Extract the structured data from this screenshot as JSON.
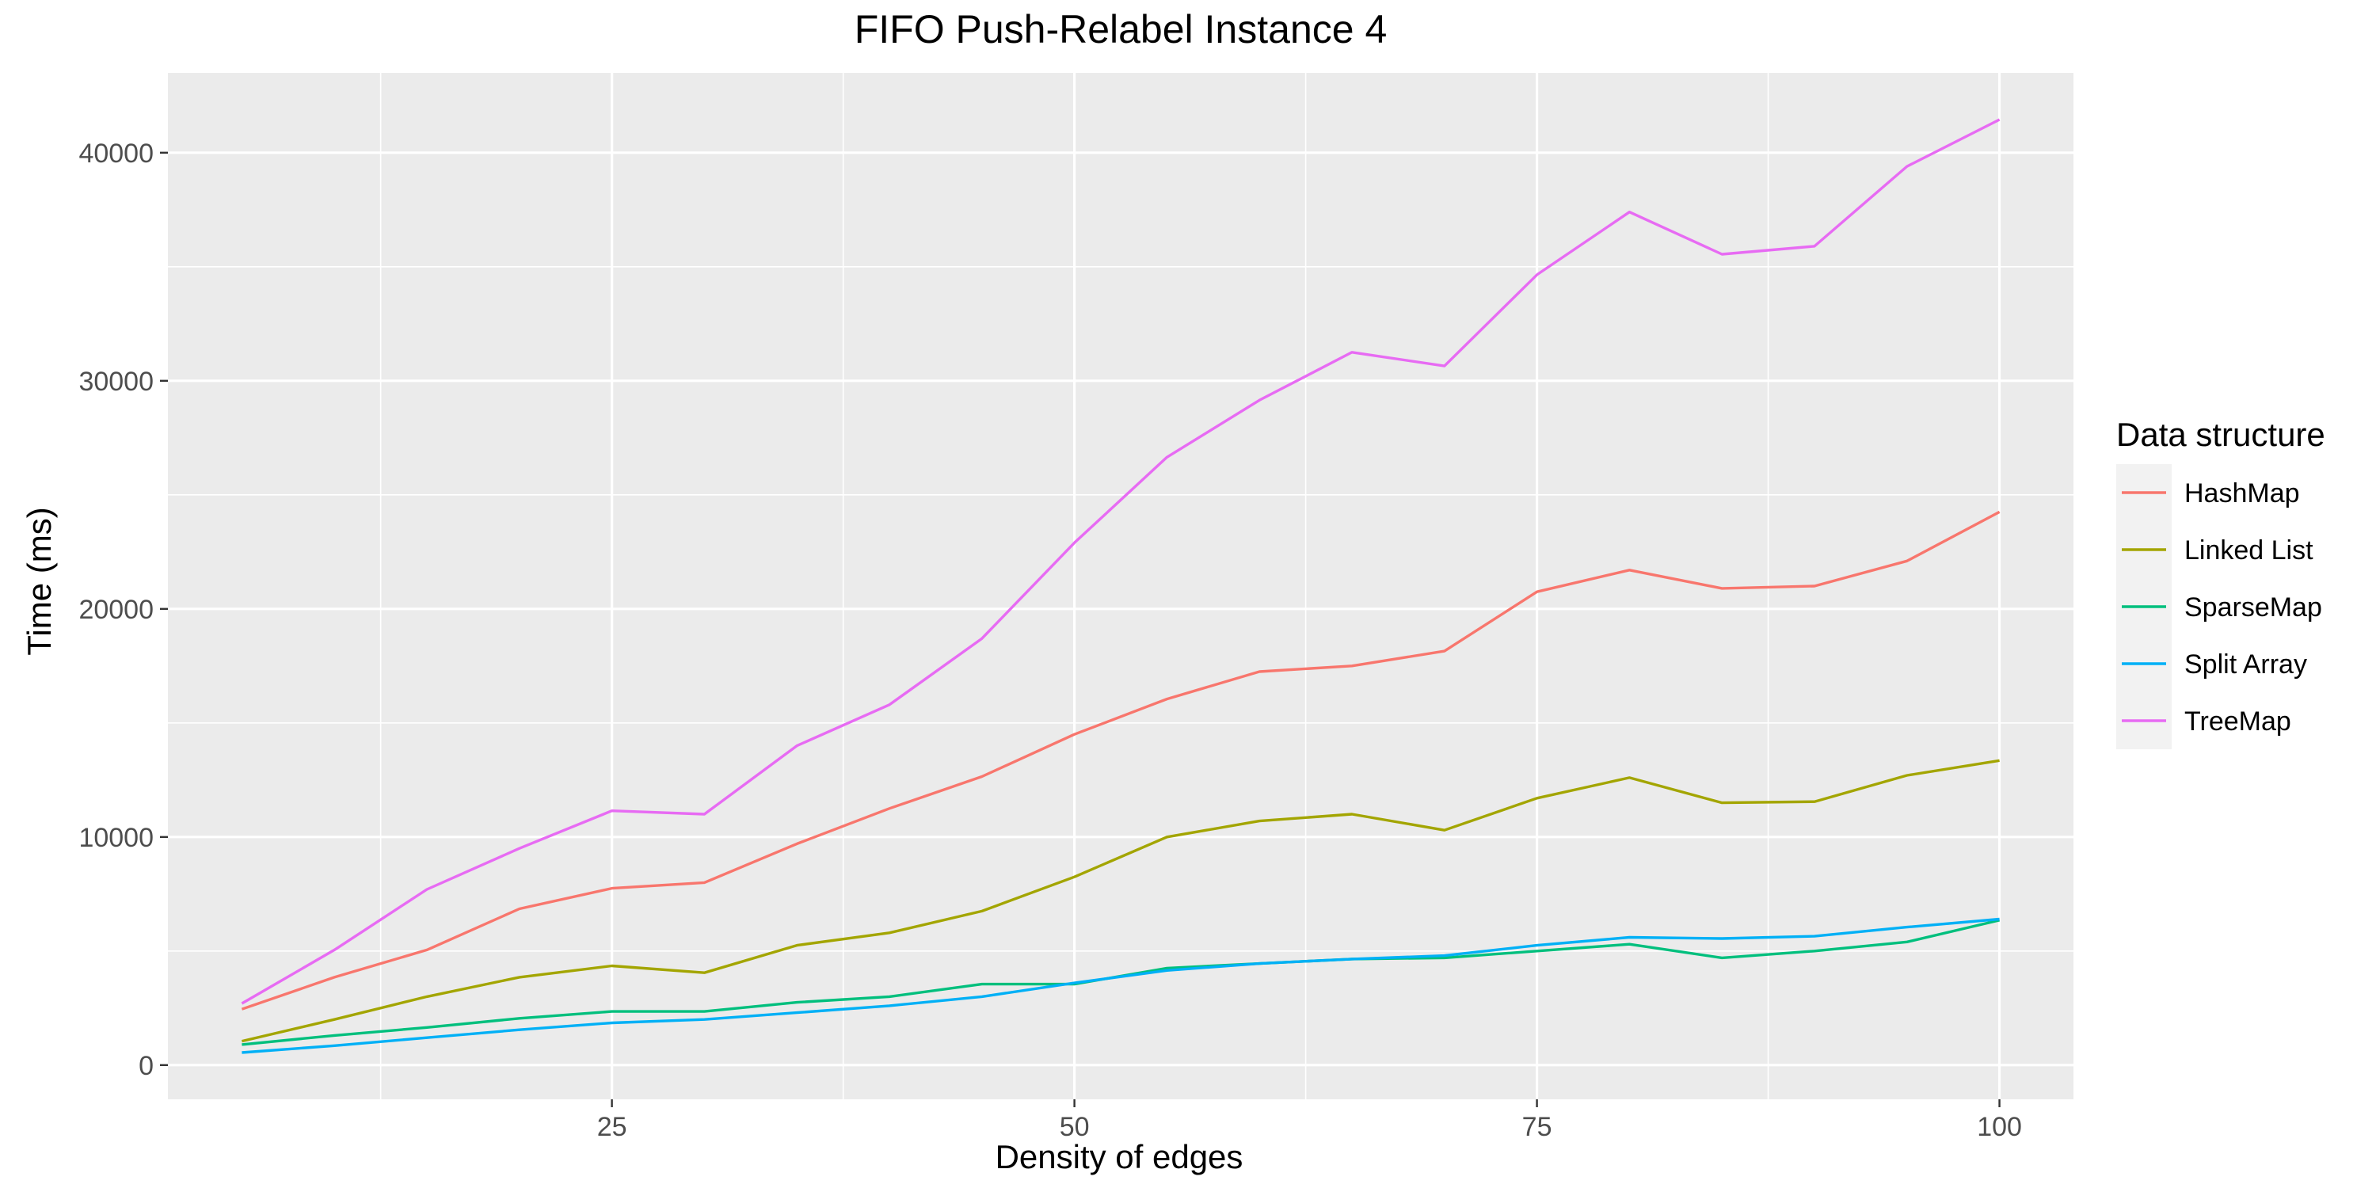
{
  "chart_data": {
    "type": "line",
    "title": "FIFO Push-Relabel Instance 4",
    "xlabel": "Density of edges",
    "ylabel": "Time (ms)",
    "xlim": [
      1,
      104
    ],
    "ylim": [
      -1500,
      43500
    ],
    "x_ticks": [
      25,
      50,
      75,
      100
    ],
    "y_ticks": [
      0,
      10000,
      20000,
      30000,
      40000
    ],
    "grid": true,
    "legend_title": "Data structure",
    "legend_position": "right",
    "x": [
      5,
      10,
      15,
      20,
      25,
      30,
      35,
      40,
      45,
      50,
      55,
      60,
      65,
      70,
      75,
      80,
      85,
      90,
      95,
      100
    ],
    "series": [
      {
        "name": "HashMap",
        "color": "#F8766D",
        "values": [
          2450,
          3850,
          5050,
          6850,
          7750,
          8000,
          9700,
          11250,
          12650,
          14500,
          16050,
          17250,
          17500,
          18150,
          20750,
          21700,
          20900,
          21000,
          22100,
          24250
        ]
      },
      {
        "name": "Linked List",
        "color": "#A3A500",
        "values": [
          1050,
          2000,
          3000,
          3850,
          4350,
          4050,
          5250,
          5800,
          6750,
          8250,
          10000,
          10700,
          11000,
          10300,
          11700,
          12600,
          11500,
          11550,
          12700,
          13350
        ]
      },
      {
        "name": "SparseMap",
        "color": "#00BF7D",
        "values": [
          900,
          1300,
          1650,
          2050,
          2350,
          2350,
          2750,
          3000,
          3550,
          3550,
          4250,
          4450,
          4650,
          4700,
          5000,
          5300,
          4700,
          5000,
          5400,
          6350
        ]
      },
      {
        "name": "Split Array",
        "color": "#00B0F6",
        "values": [
          550,
          850,
          1200,
          1550,
          1850,
          2000,
          2300,
          2600,
          3000,
          3600,
          4150,
          4450,
          4650,
          4800,
          5250,
          5600,
          5550,
          5650,
          6050,
          6400
        ]
      },
      {
        "name": "TreeMap",
        "color": "#E76BF3",
        "values": [
          2700,
          5050,
          7700,
          9500,
          11150,
          11000,
          14000,
          15800,
          18700,
          22900,
          26650,
          29150,
          31250,
          30650,
          34650,
          37400,
          35550,
          35900,
          39400,
          41450
        ]
      }
    ]
  }
}
